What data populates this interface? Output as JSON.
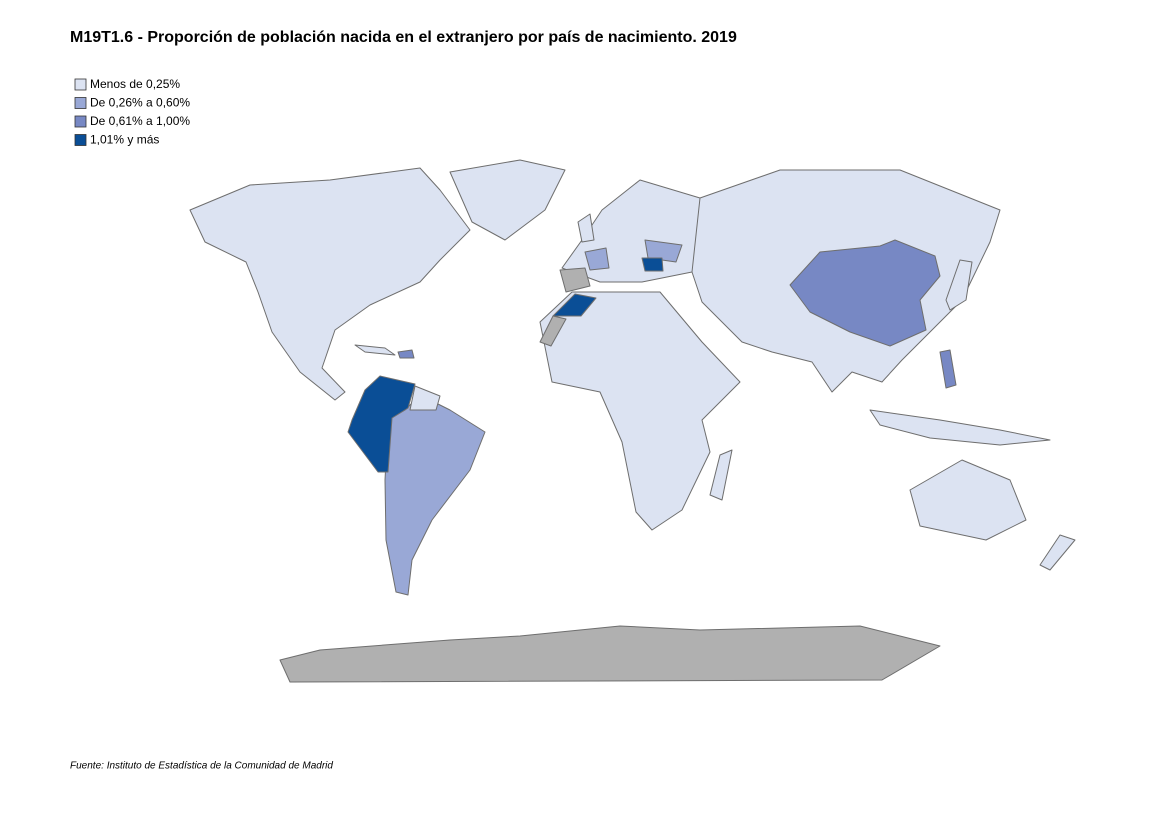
{
  "header": {
    "title": "M19T1.6 - Proporción de población nacida en el extranjero por país de nacimiento. 2019"
  },
  "legend": {
    "items": [
      {
        "label": "Menos de 0,25%",
        "color": "#dce3f2"
      },
      {
        "label": "De 0,26% a 0,60%",
        "color": "#99a8d6"
      },
      {
        "label": "De 0,61% a 1,00%",
        "color": "#7788c4"
      },
      {
        "label": "1,01%  y más",
        "color": "#0a4e96"
      }
    ]
  },
  "footer": {
    "source": "Fuente: Instituto de Estadística de la Comunidad de Madrid"
  }
}
